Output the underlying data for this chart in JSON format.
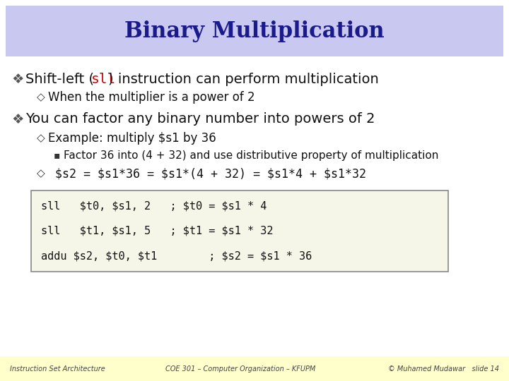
{
  "title": "Binary Multiplication",
  "title_color": "#1a1a8c",
  "title_bg_color": "#c8c8f0",
  "slide_bg_color": "#ffffff",
  "footer_bg_color": "#ffffcc",
  "bullet1_normal": "Shift-left (",
  "bullet1_code": "sll",
  "bullet1_after": ") instruction can perform multiplication",
  "sub_bullet1": "When the multiplier is a power of 2",
  "bullet2": "You can factor any binary number into powers of 2",
  "sub_bullet2": "Example: multiply $s1 by 36",
  "sub_sub_bullet": "Factor 36 into (4 + 32) and use distributive property of multiplication",
  "equation": " $s2 = $s1*36 = $s1*(4 + 32) = $s1*4 + $s1*32",
  "code_line1": "sll   $t0, $s1, 2   ; $t0 = $s1 * 4",
  "code_line2": "sll   $t1, $s1, 5   ; $t1 = $s1 * 32",
  "code_line3": "addu $s2, $t0, $t1        ; $s2 = $s1 * 36",
  "footer_left": "Instruction Set Architecture",
  "footer_mid": "COE 301 – Computer Organization – KFUPM",
  "footer_right": "© Muhamed Mudawar   slide 14",
  "diamond_open": "◇",
  "bullet_square": "▪"
}
